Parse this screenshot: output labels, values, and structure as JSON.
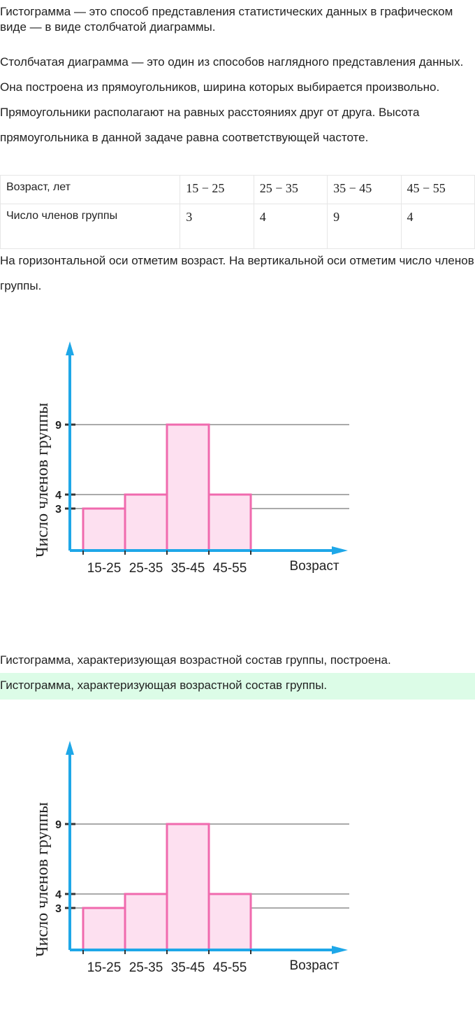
{
  "intro": "Гистограмма — это способ представления статистических данных в графическом виде — в виде столбчатой диаграммы.",
  "explanation": "Столбчатая диаграмма — это один из способов наглядного представления данных. Она построена из прямоугольников, ширина которых выбирается произвольно. Прямоугольники располагают на равных расстояниях друг от друга. Высота прямоугольника в данной задаче равна соответствующей частоте.",
  "table": {
    "row1_header": "Возраст, лет",
    "row1": [
      "15 − 25",
      "25 − 35",
      "35 − 45",
      "45 − 55"
    ],
    "row2_header": "Число членов группы",
    "row2": [
      "3",
      "4",
      "9",
      "4"
    ]
  },
  "axes_text": "На горизонтальной оси отметим возраст. На вертикальной оси отметим число членов группы.",
  "conclusion": "Гистограмма, характеризующая возрастной состав группы, построена.",
  "answer": "Гистограмма, характеризующая возрастной состав группы.",
  "colors": {
    "axis": "#1ea7e8",
    "bar_stroke": "#f06aae",
    "bar_fill": "#fde0f0",
    "grid": "#aaaaaa",
    "answer_bg": "#dcfce7"
  },
  "chart_data": [
    {
      "type": "bar",
      "categories": [
        "15-25",
        "25-35",
        "35-45",
        "45-55"
      ],
      "values": [
        3,
        4,
        9,
        4
      ],
      "xlabel": "Возраст",
      "ylabel": "Число членов группы",
      "yticks": [
        3,
        4,
        9
      ],
      "grid": true
    },
    {
      "type": "bar",
      "categories": [
        "15-25",
        "25-35",
        "35-45",
        "45-55"
      ],
      "values": [
        3,
        4,
        9,
        4
      ],
      "xlabel": "Возраст",
      "ylabel": "Число членов группы",
      "yticks": [
        3,
        4,
        9
      ],
      "grid": true
    }
  ]
}
